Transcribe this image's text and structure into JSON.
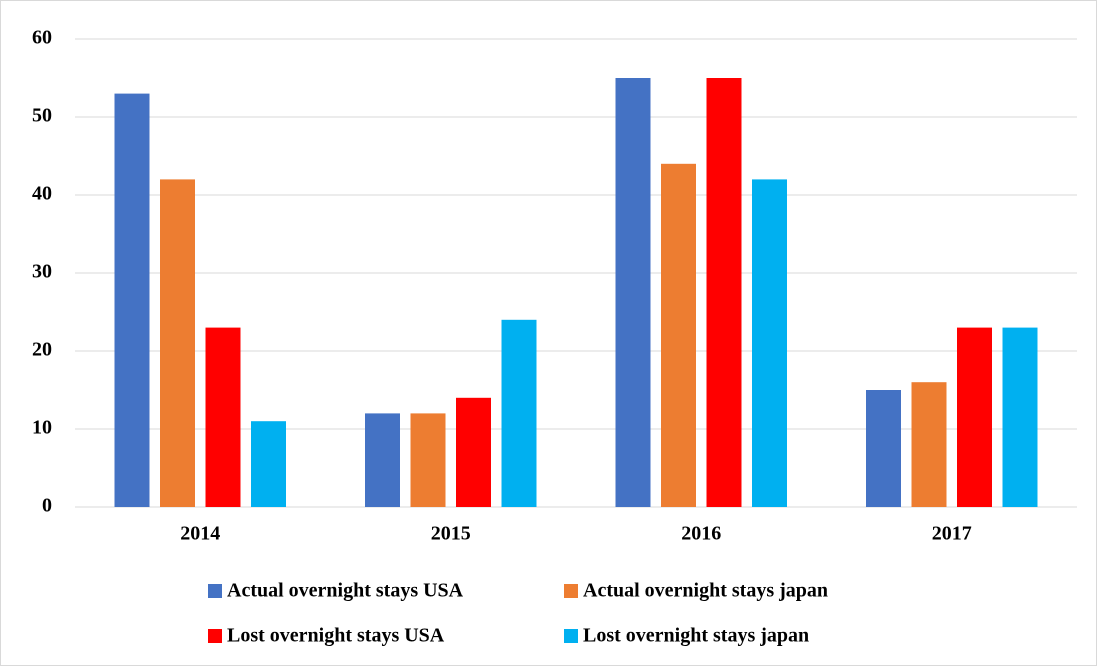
{
  "chart_data": {
    "type": "bar",
    "categories": [
      "2014",
      "2015",
      "2016",
      "2017"
    ],
    "series": [
      {
        "name": "Actual overnight stays USA",
        "color": "#4472c4",
        "values": [
          53,
          12,
          55,
          15
        ]
      },
      {
        "name": "Actual overnight stays japan",
        "color": "#ed7d31",
        "values": [
          42,
          12,
          44,
          16
        ]
      },
      {
        "name": "Lost overnight stays USA",
        "color": "#ff0000",
        "values": [
          23,
          14,
          55,
          23
        ]
      },
      {
        "name": "Lost overnight stays japan",
        "color": "#00b0f0",
        "values": [
          11,
          24,
          42,
          23
        ]
      }
    ],
    "ylim": [
      0,
      60
    ],
    "yticks": [
      0,
      10,
      20,
      30,
      40,
      50,
      60
    ],
    "grid": true,
    "legend": "bottom"
  }
}
